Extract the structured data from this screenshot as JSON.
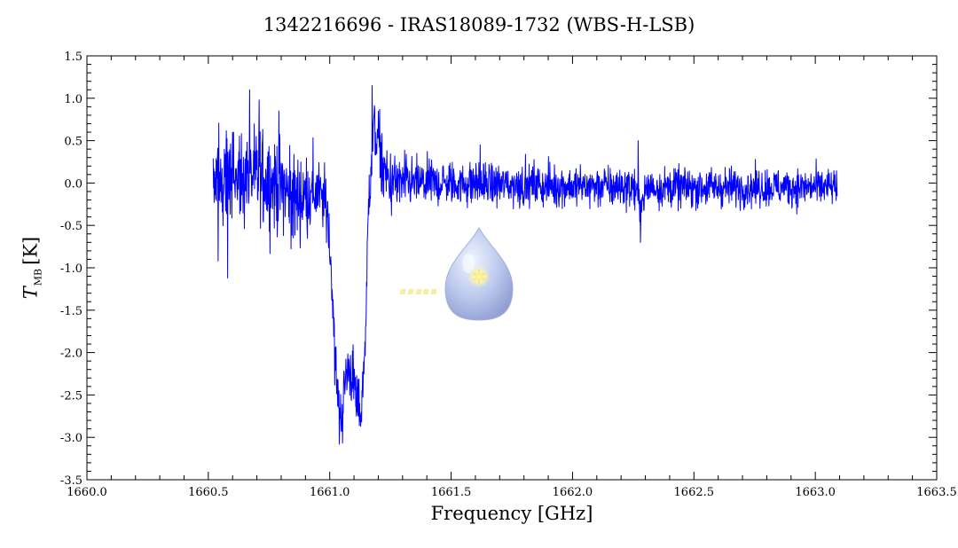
{
  "chart_data": {
    "type": "line",
    "title": "1342216696 - IRAS18089-1732 (WBS-H-LSB)",
    "xlabel": "Frequency [GHz]",
    "ylabel_main": "T",
    "ylabel_sub": "MB",
    "ylabel_unit": "[K]",
    "xlim": [
      1660.0,
      1663.5
    ],
    "ylim": [
      -3.5,
      1.5
    ],
    "xticks": [
      1660.0,
      1660.5,
      1661.0,
      1661.5,
      1662.0,
      1662.5,
      1663.0,
      1663.5
    ],
    "xtick_labels": [
      "1660.0",
      "1660.5",
      "1661.0",
      "1661.5",
      "1662.0",
      "1662.5",
      "1663.0",
      "1663.5"
    ],
    "yticks": [
      -3.5,
      -3.0,
      -2.5,
      -2.0,
      -1.5,
      -1.0,
      -0.5,
      0.0,
      0.5,
      1.0,
      1.5
    ],
    "ytick_labels": [
      "-3.5",
      "-3.0",
      "-2.5",
      "-2.0",
      "-1.5",
      "-1.0",
      "-0.5",
      "0.0",
      "0.5",
      "1.0",
      "1.5"
    ],
    "grid": false,
    "series": [
      {
        "color": "#0000ff",
        "x_start": 1660.52,
        "x_end": 1663.09,
        "profile": [
          [
            1660.52,
            0.05
          ],
          [
            1660.75,
            0.05
          ],
          [
            1660.82,
            -0.1
          ],
          [
            1660.86,
            -0.2
          ],
          [
            1660.95,
            -0.1
          ],
          [
            1660.99,
            -0.3
          ],
          [
            1661.01,
            -1.2
          ],
          [
            1661.03,
            -2.5
          ],
          [
            1661.05,
            -2.75
          ],
          [
            1661.07,
            -2.2
          ],
          [
            1661.09,
            -2.2
          ],
          [
            1661.11,
            -2.6
          ],
          [
            1661.13,
            -2.7
          ],
          [
            1661.15,
            -1.6
          ],
          [
            1661.16,
            -0.2
          ],
          [
            1661.18,
            0.65
          ],
          [
            1661.2,
            0.5
          ],
          [
            1661.22,
            0.15
          ],
          [
            1661.25,
            0.0
          ],
          [
            1661.4,
            0.0
          ],
          [
            1662.25,
            -0.05
          ],
          [
            1662.28,
            -0.25
          ],
          [
            1662.31,
            -0.05
          ],
          [
            1663.09,
            -0.05
          ]
        ],
        "noise_sigma": [
          [
            1660.52,
            0.28
          ],
          [
            1660.85,
            0.28
          ],
          [
            1660.98,
            0.2
          ],
          [
            1661.2,
            0.2
          ],
          [
            1661.4,
            0.13
          ],
          [
            1663.09,
            0.11
          ]
        ],
        "notable_values": [
          {
            "x": 1661.04,
            "y": -3.08,
            "label": "minimum"
          },
          {
            "x": 1661.175,
            "y": 1.15,
            "label": "maximum"
          },
          {
            "x": 1660.58,
            "y": -1.12
          },
          {
            "x": 1660.54,
            "y": -0.92
          },
          {
            "x": 1660.67,
            "y": 1.1
          },
          {
            "x": 1660.71,
            "y": 0.98
          },
          {
            "x": 1660.79,
            "y": 0.85
          },
          {
            "x": 1662.28,
            "y": -0.7
          },
          {
            "x": 1662.27,
            "y": 0.5
          },
          {
            "x": 1661.62,
            "y": 0.45
          }
        ]
      }
    ]
  }
}
